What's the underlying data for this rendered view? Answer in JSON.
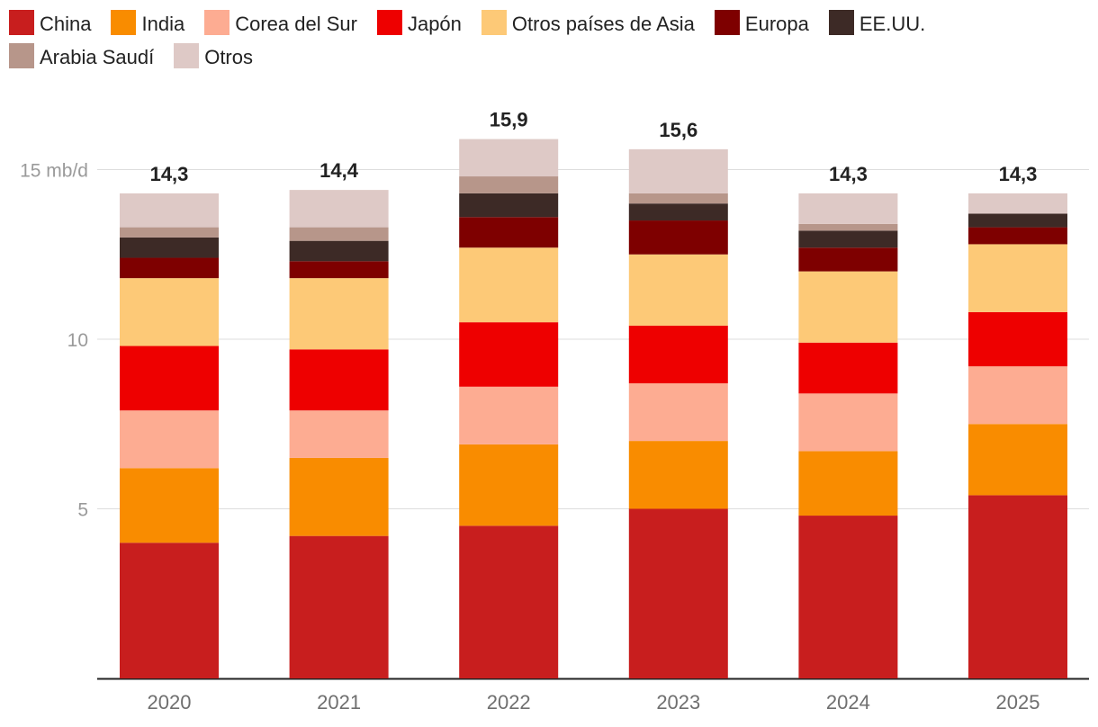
{
  "chart_data": {
    "type": "bar",
    "stacked": true,
    "unit": "mb/d",
    "categories": [
      "2020",
      "2021",
      "2022",
      "2023",
      "2024",
      "2025"
    ],
    "totals_labels": [
      "14,3",
      "14,4",
      "15,9",
      "15,6",
      "14,3",
      "14,3"
    ],
    "yticks": [
      {
        "value": 5,
        "label": "5"
      },
      {
        "value": 10,
        "label": "10"
      },
      {
        "value": 15,
        "label": "15 mb/d"
      }
    ],
    "ylim": [
      0,
      17.5
    ],
    "grid": true,
    "legend_position": "top",
    "series": [
      {
        "name": "China",
        "color": "#c81e1e",
        "values": [
          4.0,
          4.2,
          4.5,
          5.0,
          4.8,
          5.4
        ]
      },
      {
        "name": "India",
        "color": "#f98c00",
        "values": [
          2.2,
          2.3,
          2.4,
          2.0,
          1.9,
          2.1
        ]
      },
      {
        "name": "Corea del Sur",
        "color": "#fdac92",
        "values": [
          1.7,
          1.4,
          1.7,
          1.7,
          1.7,
          1.7
        ]
      },
      {
        "name": "Japón",
        "color": "#ee0000",
        "values": [
          1.9,
          1.8,
          1.9,
          1.7,
          1.5,
          1.6
        ]
      },
      {
        "name": "Otros países de Asia",
        "color": "#fdc977",
        "values": [
          2.0,
          2.1,
          2.2,
          2.1,
          2.1,
          2.0
        ]
      },
      {
        "name": "Europa",
        "color": "#7e0000",
        "values": [
          0.6,
          0.5,
          0.9,
          1.0,
          0.7,
          0.5
        ]
      },
      {
        "name": "EE.UU.",
        "color": "#3d2a26",
        "values": [
          0.6,
          0.6,
          0.7,
          0.5,
          0.5,
          0.4
        ]
      },
      {
        "name": "Arabia Saudí",
        "color": "#b7968a",
        "values": [
          0.3,
          0.4,
          0.5,
          0.3,
          0.2,
          0.0
        ]
      },
      {
        "name": "Otros",
        "color": "#dec9c6",
        "values": [
          1.0,
          1.1,
          1.1,
          1.3,
          0.9,
          0.6
        ]
      }
    ]
  }
}
